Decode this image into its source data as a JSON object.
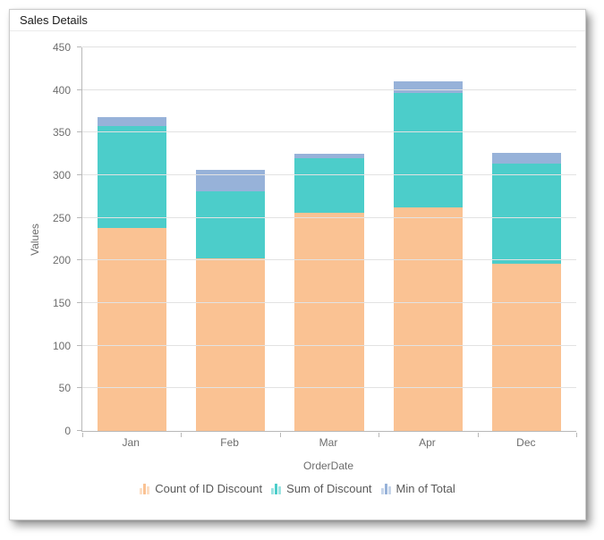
{
  "header": {
    "title": "Sales Details"
  },
  "chart_data": {
    "type": "bar",
    "stacked": true,
    "title": "Sales Details",
    "xlabel": "OrderDate",
    "ylabel": "Values",
    "categories": [
      "Jan",
      "Feb",
      "Mar",
      "Apr",
      "Dec"
    ],
    "series": [
      {
        "name": "Count of ID Discount",
        "color": "#FAC293",
        "values": [
          238,
          202,
          256,
          262,
          196
        ]
      },
      {
        "name": "Sum of Discount",
        "color": "#4CCDCA",
        "values": [
          120,
          79,
          64,
          135,
          118
        ]
      },
      {
        "name": "Min of Total",
        "color": "#97B2D9",
        "values": [
          10,
          25,
          5,
          13,
          12
        ]
      }
    ],
    "stack_totals": [
      368,
      306,
      325,
      410,
      326
    ],
    "ylim": [
      0,
      450
    ],
    "ytick_step": 50,
    "grid": true,
    "legend_position": "bottom",
    "bar_width_pct": 70
  },
  "colors": {
    "card_border": "#cccccc",
    "divider": "#ebebeb",
    "title_text": "#1a1a1a",
    "tick_text": "#6d6d6d",
    "legend_text": "#595959",
    "axis_line": "#b8b8b8",
    "gridline": "#e2e2e2"
  }
}
